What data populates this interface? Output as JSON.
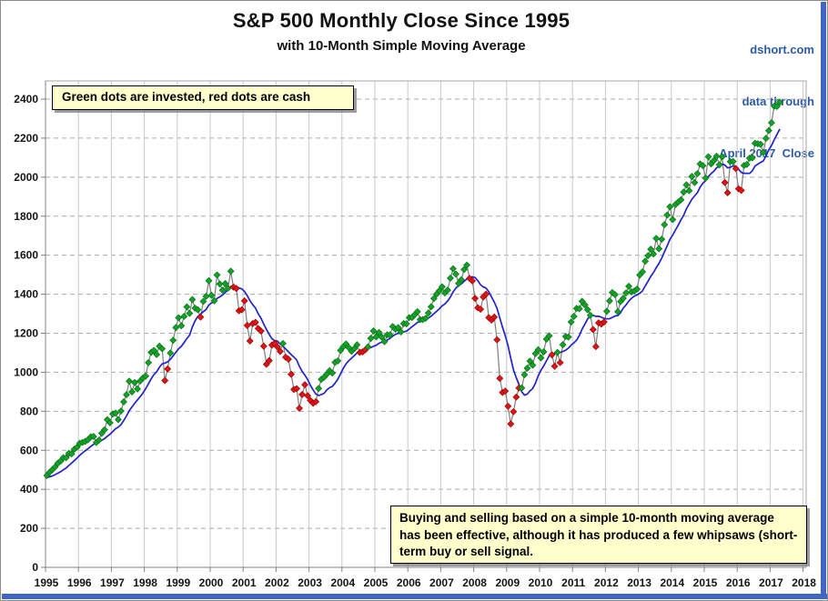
{
  "header": {
    "title": "S&P 500 Monthly Close Since 1995",
    "subtitle": "with 10-Month Simple Moving Average",
    "source": [
      "dshort.com",
      "data through",
      "April 2017  Close"
    ]
  },
  "annotations": {
    "legend_note": "Green dots are invested, red dots are cash",
    "strategy_note": "Buying and selling based on a simple 10-month moving average has been effective, although it has produced a few whipsaws (short-term buy or sell signal."
  },
  "colors": {
    "invested_dot": "#14a228",
    "invested_dot_edge": "#0b7a1a",
    "cash_dot": "#e01414",
    "cash_dot_edge": "#a30a0a",
    "sma_line": "#2222cc",
    "price_line": "#7f7f7f",
    "grid_vertical": "#c9c9c9",
    "grid_horizontal": "#ababab",
    "frame": "#a6a6a6",
    "axis": "#808080",
    "source_text": "#2b5aa8",
    "accent_border": "#4066c4",
    "annotation_bg": "#ffffcc"
  },
  "chart_data": {
    "type": "line",
    "title": "S&P 500 Monthly Close Since 1995 with 10-Month Simple Moving Average",
    "x_tick_labels": [
      "1995",
      "1996",
      "1997",
      "1998",
      "1999",
      "2000",
      "2001",
      "2002",
      "2003",
      "2004",
      "2005",
      "2006",
      "2007",
      "2008",
      "2009",
      "2010",
      "2011",
      "2012",
      "2013",
      "2014",
      "2015",
      "2016",
      "2017",
      "2018"
    ],
    "y_ticks": [
      0,
      200,
      400,
      600,
      800,
      1000,
      1200,
      1400,
      1600,
      1800,
      2000,
      2200,
      2400
    ],
    "ylim": [
      0,
      2490
    ],
    "grid": true,
    "marker_rule": "green diamond = invested (monthly close at or above 10-month SMA), red diamond = cash (monthly close below 10-month SMA)",
    "series": [
      {
        "name": "S&P 500 Monthly Close",
        "start": "1995-01",
        "end": "2017-04",
        "monthly_closes_by_year": {
          "1995": [
            470.42,
            487.39,
            500.71,
            514.71,
            533.4,
            544.75,
            562.06,
            561.88,
            584.41,
            581.5,
            605.37,
            615.93
          ],
          "1996": [
            636.02,
            640.43,
            645.5,
            654.17,
            669.12,
            670.63,
            639.95,
            651.99,
            687.31,
            705.27,
            757.02,
            740.74
          ],
          "1997": [
            786.16,
            790.82,
            757.12,
            801.34,
            848.28,
            885.14,
            954.29,
            899.47,
            947.28,
            914.62,
            955.4,
            970.43
          ],
          "1998": [
            980.28,
            1049.34,
            1101.75,
            1111.75,
            1090.82,
            1133.84,
            1120.67,
            957.28,
            1017.01,
            1098.67,
            1163.63,
            1229.23
          ],
          "1999": [
            1279.64,
            1238.33,
            1286.37,
            1335.18,
            1301.84,
            1372.71,
            1328.72,
            1320.41,
            1282.71,
            1362.93,
            1388.91,
            1469.25
          ],
          "2000": [
            1394.46,
            1366.42,
            1498.58,
            1452.43,
            1420.6,
            1454.6,
            1430.83,
            1517.68,
            1436.51,
            1429.4,
            1314.95,
            1320.28
          ],
          "2001": [
            1366.01,
            1239.94,
            1160.33,
            1249.46,
            1255.82,
            1224.38,
            1211.23,
            1133.58,
            1040.94,
            1059.78,
            1139.45,
            1148.08
          ],
          "2002": [
            1130.2,
            1106.73,
            1147.39,
            1076.92,
            1067.14,
            989.82,
            911.62,
            916.07,
            815.28,
            885.76,
            936.31,
            879.82
          ],
          "2003": [
            855.7,
            841.15,
            849.18,
            916.92,
            963.59,
            974.5,
            990.31,
            1008.01,
            995.97,
            1050.71,
            1058.2,
            1111.92
          ],
          "2004": [
            1131.13,
            1144.94,
            1126.21,
            1107.3,
            1120.68,
            1140.84,
            1101.72,
            1104.24,
            1114.58,
            1130.2,
            1173.82,
            1211.92
          ],
          "2005": [
            1181.27,
            1203.6,
            1180.59,
            1156.85,
            1191.5,
            1191.33,
            1234.18,
            1220.33,
            1228.81,
            1207.01,
            1249.48,
            1248.29
          ],
          "2006": [
            1280.08,
            1280.66,
            1294.87,
            1310.61,
            1270.09,
            1270.2,
            1276.66,
            1303.82,
            1335.85,
            1377.94,
            1400.63,
            1418.3
          ],
          "2007": [
            1438.24,
            1406.82,
            1420.86,
            1482.37,
            1530.62,
            1503.35,
            1455.27,
            1473.99,
            1526.75,
            1549.38,
            1481.14,
            1468.36
          ],
          "2008": [
            1378.55,
            1330.63,
            1322.7,
            1385.59,
            1400.38,
            1280.0,
            1267.38,
            1282.83,
            1166.36,
            968.75,
            896.24,
            903.25
          ],
          "2009": [
            825.88,
            735.09,
            797.87,
            872.81,
            919.14,
            919.32,
            987.48,
            1020.62,
            1057.08,
            1036.19,
            1095.63,
            1115.1
          ],
          "2010": [
            1073.87,
            1104.49,
            1169.43,
            1186.69,
            1089.41,
            1030.71,
            1101.6,
            1049.33,
            1141.2,
            1183.26,
            1180.55,
            1257.64
          ],
          "2011": [
            1286.12,
            1327.22,
            1325.83,
            1363.61,
            1345.2,
            1320.64,
            1292.28,
            1218.89,
            1131.42,
            1253.3,
            1246.96,
            1257.6
          ],
          "2012": [
            1312.41,
            1365.68,
            1408.47,
            1397.91,
            1310.33,
            1362.16,
            1379.32,
            1406.58,
            1440.67,
            1412.16,
            1416.18,
            1426.19
          ],
          "2013": [
            1498.11,
            1514.68,
            1569.19,
            1597.57,
            1630.74,
            1606.28,
            1685.73,
            1632.97,
            1681.55,
            1756.54,
            1805.81,
            1848.36
          ],
          "2014": [
            1782.59,
            1859.45,
            1872.34,
            1883.95,
            1923.57,
            1960.23,
            1930.67,
            2003.37,
            1972.29,
            2018.05,
            2067.56,
            2058.9
          ],
          "2015": [
            1994.99,
            2104.5,
            2067.89,
            2085.51,
            2107.39,
            2063.11,
            2103.84,
            1972.18,
            1920.03,
            2079.36,
            2080.41,
            2043.94
          ],
          "2016": [
            1940.24,
            1932.23,
            2059.74,
            2065.3,
            2096.96,
            2098.86,
            2173.6,
            2170.95,
            2168.27,
            2126.15,
            2198.81,
            2238.83
          ],
          "2017": [
            2278.87,
            2363.64,
            2362.72,
            2384.2
          ]
        }
      },
      {
        "name": "10-Month Simple Moving Average",
        "derivation": "10-month simple moving average of the monthly closes",
        "sma_seed_prior_months": [
          450.91,
          456.5,
          444.27,
          458.26,
          475.49,
          462.69,
          472.35,
          453.69,
          459.27
        ]
      }
    ]
  }
}
